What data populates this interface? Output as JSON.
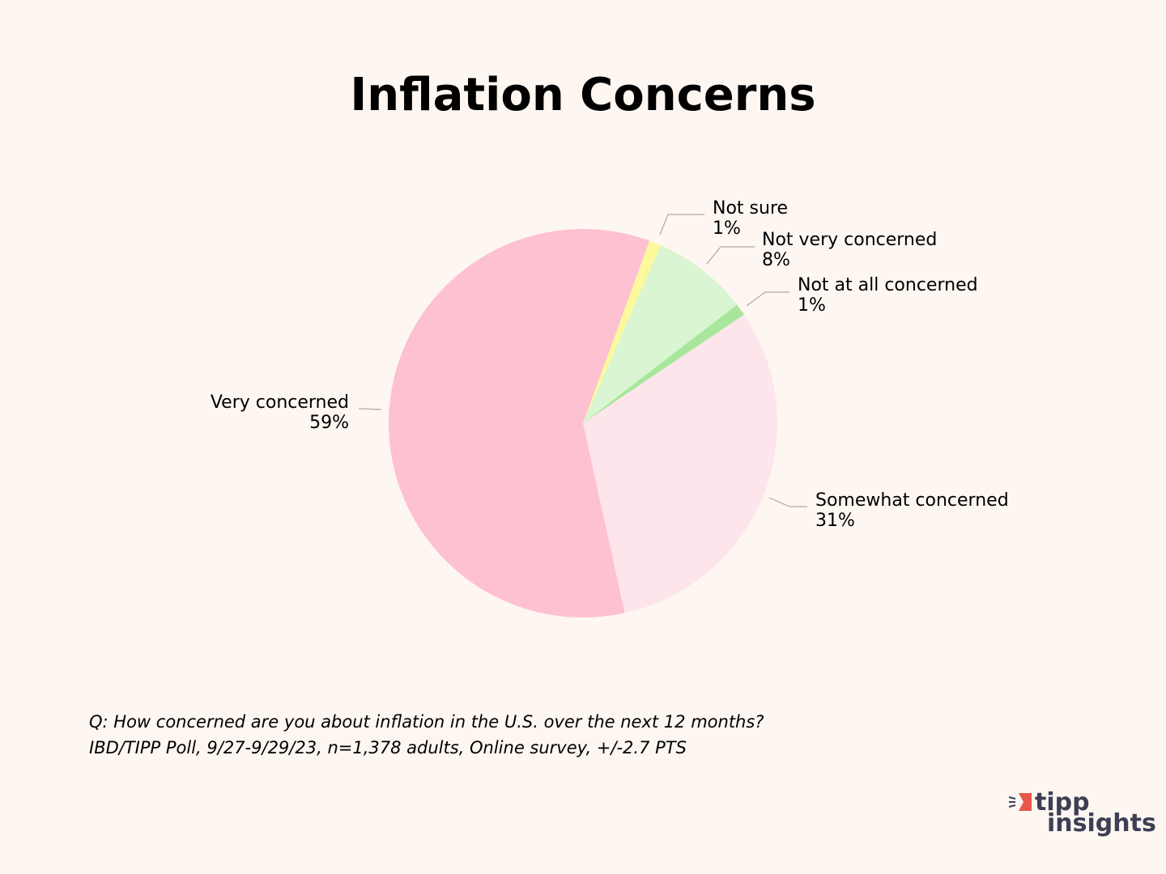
{
  "chart_data": {
    "type": "pie",
    "title": "Inflation Concerns",
    "categories": [
      "Not sure",
      "Not very concerned",
      "Not at all concerned",
      "Somewhat concerned",
      "Very concerned"
    ],
    "values": [
      1,
      8,
      1,
      31,
      59
    ],
    "value_labels": [
      "1%",
      "8%",
      "1%",
      "31%",
      "59%"
    ],
    "colors": [
      "#fcf99c",
      "#d9f5d1",
      "#a8e79b",
      "#fde5eb",
      "#fdc1d1"
    ],
    "notes": [
      "Q:  How concerned are you about inflation in the U.S. over the next 12 months?",
      "IBD/TIPP Poll, 9/27-9/29/23, n=1,378 adults, Online survey, +/-2.7 PTS"
    ]
  },
  "logo": {
    "line1": "tipp",
    "line2": "insights"
  }
}
